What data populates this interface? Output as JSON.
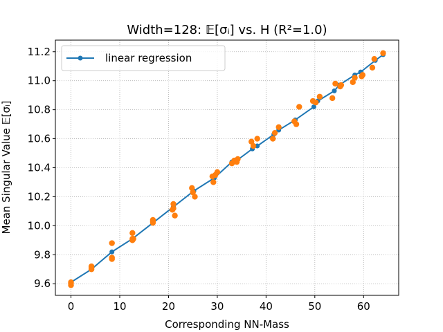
{
  "chart_data": {
    "type": "scatter",
    "title": "Width=128: 𝔼[σᵢ] vs. H    (R²=1.0)",
    "xlabel": "Corresponding NN-Mass",
    "ylabel": "Mean Singular Value 𝔼[σᵢ]",
    "xlim": [
      -3.2,
      67.2
    ],
    "ylim": [
      9.52,
      11.28
    ],
    "xticks": [
      0,
      10,
      20,
      30,
      40,
      50,
      60
    ],
    "yticks": [
      9.6,
      9.8,
      10.0,
      10.2,
      10.4,
      10.6,
      10.8,
      11.0,
      11.2
    ],
    "ytick_labels": [
      "9.6",
      "9.8",
      "10.0",
      "10.2",
      "10.4",
      "10.6",
      "10.8",
      "11.0",
      "11.2"
    ],
    "grid": true,
    "legend_position": "top-left",
    "colors": {
      "regression": "#1f77b4",
      "scatter": "#ff7f0e",
      "grid": "#b0b0b0"
    },
    "series": [
      {
        "name": "linear regression",
        "kind": "line-with-markers",
        "x": [
          0,
          4.2,
          8.4,
          12.6,
          16.8,
          21.0,
          25.2,
          29.4,
          33.0,
          34.0,
          37.2,
          38.2,
          41.6,
          42.6,
          46.0,
          49.8,
          50.6,
          54.0,
          55.0,
          58.2,
          59.4,
          62.4,
          64.0
        ],
        "y": [
          9.61,
          9.7,
          9.82,
          9.91,
          10.02,
          10.13,
          10.24,
          10.33,
          10.44,
          10.45,
          10.53,
          10.55,
          10.63,
          10.66,
          10.73,
          10.82,
          10.86,
          10.93,
          10.97,
          11.04,
          11.06,
          11.14,
          11.18
        ]
      },
      {
        "kind": "scatter",
        "x": [
          0,
          0,
          0,
          4.2,
          4.2,
          4.2,
          8.4,
          8.4,
          8.4,
          12.6,
          12.6,
          12.6,
          12.8,
          16.8,
          16.8,
          16.8,
          20.8,
          21.0,
          21.0,
          21.3,
          24.8,
          25.0,
          25.4,
          29.0,
          29.2,
          29.6,
          30.0,
          33.0,
          33.5,
          34.0,
          34.2,
          37.0,
          37.4,
          38.2,
          41.4,
          41.8,
          42.6,
          45.8,
          46.2,
          46.8,
          49.6,
          50.2,
          51.0,
          53.6,
          54.2,
          55.2,
          55.4,
          57.8,
          58.2,
          59.6,
          59.8,
          61.8,
          62.2,
          64.0
        ],
        "y": [
          9.6,
          9.61,
          9.59,
          9.71,
          9.7,
          9.72,
          9.88,
          9.78,
          9.77,
          9.95,
          9.9,
          9.91,
          9.91,
          10.04,
          10.02,
          10.03,
          10.11,
          10.15,
          10.12,
          10.07,
          10.26,
          10.23,
          10.2,
          10.34,
          10.3,
          10.35,
          10.37,
          10.43,
          10.45,
          10.44,
          10.46,
          10.58,
          10.55,
          10.6,
          10.6,
          10.64,
          10.68,
          10.72,
          10.7,
          10.82,
          10.86,
          10.85,
          10.89,
          10.88,
          10.98,
          10.96,
          10.97,
          10.99,
          11.02,
          11.03,
          11.04,
          11.09,
          11.15,
          11.19
        ]
      }
    ]
  }
}
